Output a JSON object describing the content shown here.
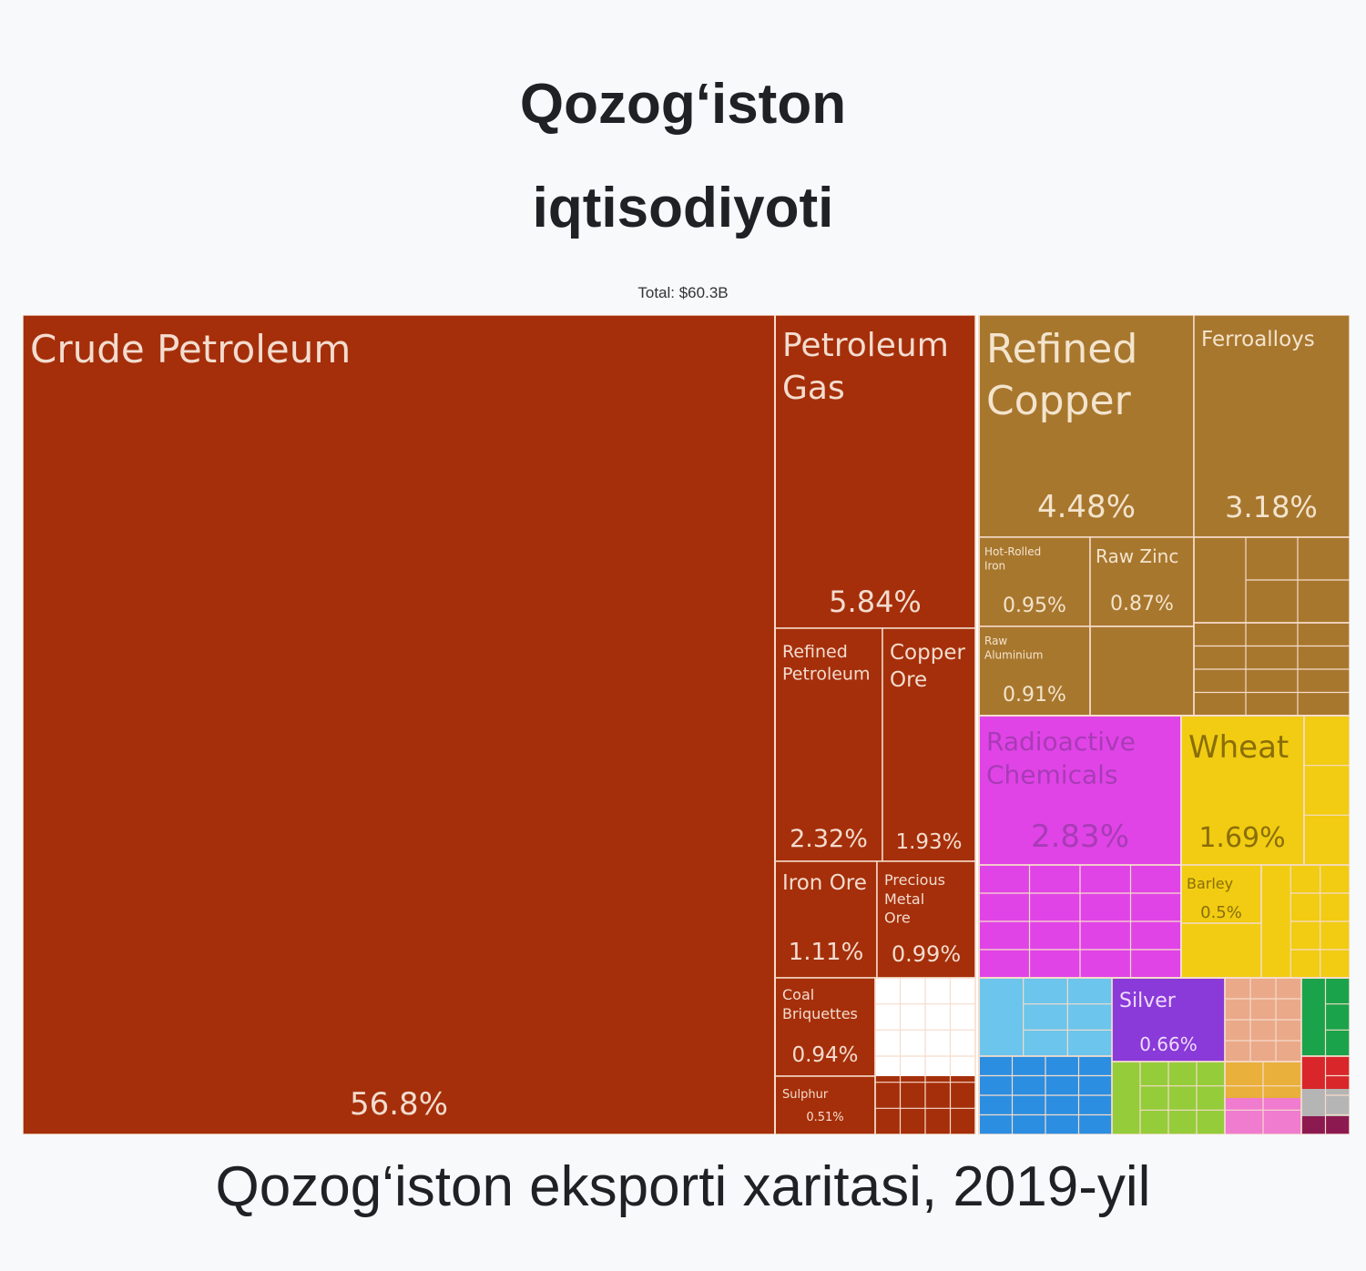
{
  "header": {
    "title_line1": "Qozog‘iston",
    "title_line2": "iqtisodiyoti"
  },
  "total_label": "Total: $60.3B",
  "caption": "Qozog‘iston eksporti xaritasi, 2019-yil",
  "colors": {
    "minerals": "#a52f0a",
    "metals": "#a8772e",
    "chemicals": "#e044e6",
    "vegetable": "#f1cc12",
    "light_blue": "#6cc5ec",
    "purple": "#8a3ad8",
    "salmon": "#eaa989",
    "green": "#1aa34a",
    "blue": "#2b8ee0",
    "lime": "#95cc3a",
    "orange": "#e9b03b",
    "pink": "#f07ccf",
    "red": "#d8262b",
    "maroon": "#8c1a50",
    "grey": "#b5b5b5",
    "grid_line": "#f5dccb"
  },
  "chart_data": {
    "type": "treemap",
    "total": "$60.3B",
    "tiles": [
      {
        "name": "Crude Petroleum",
        "value": 56.8,
        "label": "56.8%",
        "group": "minerals"
      },
      {
        "name": "Petroleum Gas",
        "value": 5.84,
        "label": "5.84%",
        "group": "minerals"
      },
      {
        "name": "Refined Petroleum",
        "value": 2.32,
        "label": "2.32%",
        "group": "minerals"
      },
      {
        "name": "Copper Ore",
        "value": 1.93,
        "label": "1.93%",
        "group": "minerals"
      },
      {
        "name": "Iron Ore",
        "value": 1.11,
        "label": "1.11%",
        "group": "minerals"
      },
      {
        "name": "Precious Metal Ore",
        "value": 0.99,
        "label": "0.99%",
        "group": "minerals"
      },
      {
        "name": "Coal Briquettes",
        "value": 0.94,
        "label": "0.94%",
        "group": "minerals"
      },
      {
        "name": "Sulphur",
        "value": 0.51,
        "label": "0.51%",
        "group": "minerals"
      },
      {
        "name": "Refined Copper",
        "value": 4.48,
        "label": "4.48%",
        "group": "metals"
      },
      {
        "name": "Ferroalloys",
        "value": 3.18,
        "label": "3.18%",
        "group": "metals"
      },
      {
        "name": "Hot-Rolled Iron",
        "value": 0.95,
        "label": "0.95%",
        "group": "metals"
      },
      {
        "name": "Raw Zinc",
        "value": 0.87,
        "label": "0.87%",
        "group": "metals"
      },
      {
        "name": "Raw Aluminium",
        "value": 0.91,
        "label": "0.91%",
        "group": "metals"
      },
      {
        "name": "Radioactive Chemicals",
        "value": 2.83,
        "label": "2.83%",
        "group": "chemicals"
      },
      {
        "name": "Wheat",
        "value": 1.69,
        "label": "1.69%",
        "group": "vegetable"
      },
      {
        "name": "Barley",
        "value": 0.5,
        "label": "0.5%",
        "group": "vegetable"
      },
      {
        "name": "Silver",
        "value": 0.66,
        "label": "0.66%",
        "group": "purple"
      }
    ]
  }
}
